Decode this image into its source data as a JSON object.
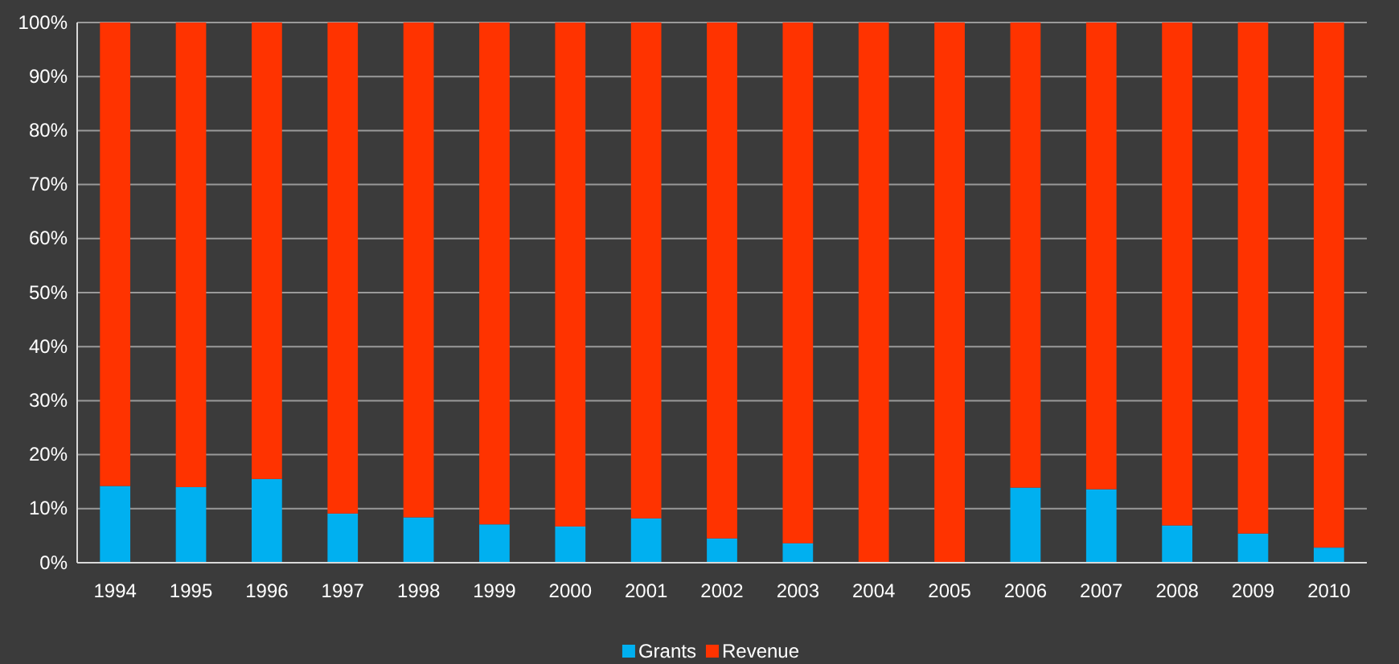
{
  "chart_data": {
    "type": "bar",
    "stacked": true,
    "categories": [
      "1994",
      "1995",
      "1996",
      "1997",
      "1998",
      "1999",
      "2000",
      "2001",
      "2002",
      "2003",
      "2004",
      "2005",
      "2006",
      "2007",
      "2008",
      "2009",
      "2010"
    ],
    "series": [
      {
        "name": "Grants",
        "color": "#00b0f0",
        "values": [
          14.2,
          14.0,
          15.5,
          9.1,
          8.4,
          7.1,
          6.7,
          8.2,
          4.5,
          3.6,
          0,
          0,
          13.9,
          13.6,
          6.9,
          5.4,
          2.8
        ]
      },
      {
        "name": "Revenue",
        "color": "#ff3300",
        "values": [
          85.8,
          86.0,
          84.5,
          90.9,
          91.6,
          92.9,
          93.3,
          91.8,
          95.5,
          96.4,
          100,
          100,
          86.1,
          86.4,
          93.1,
          94.6,
          97.2
        ]
      }
    ],
    "ylim": [
      0,
      100
    ],
    "yticks": [
      {
        "value": 0,
        "label": "0%"
      },
      {
        "value": 10,
        "label": "10%"
      },
      {
        "value": 20,
        "label": "20%"
      },
      {
        "value": 30,
        "label": "30%"
      },
      {
        "value": 40,
        "label": "40%"
      },
      {
        "value": 50,
        "label": "50%"
      },
      {
        "value": 60,
        "label": "60%"
      },
      {
        "value": 70,
        "label": "70%"
      },
      {
        "value": 80,
        "label": "80%"
      },
      {
        "value": 90,
        "label": "90%"
      },
      {
        "value": 100,
        "label": "100%"
      }
    ],
    "grid": "y",
    "legend": "bottom"
  }
}
